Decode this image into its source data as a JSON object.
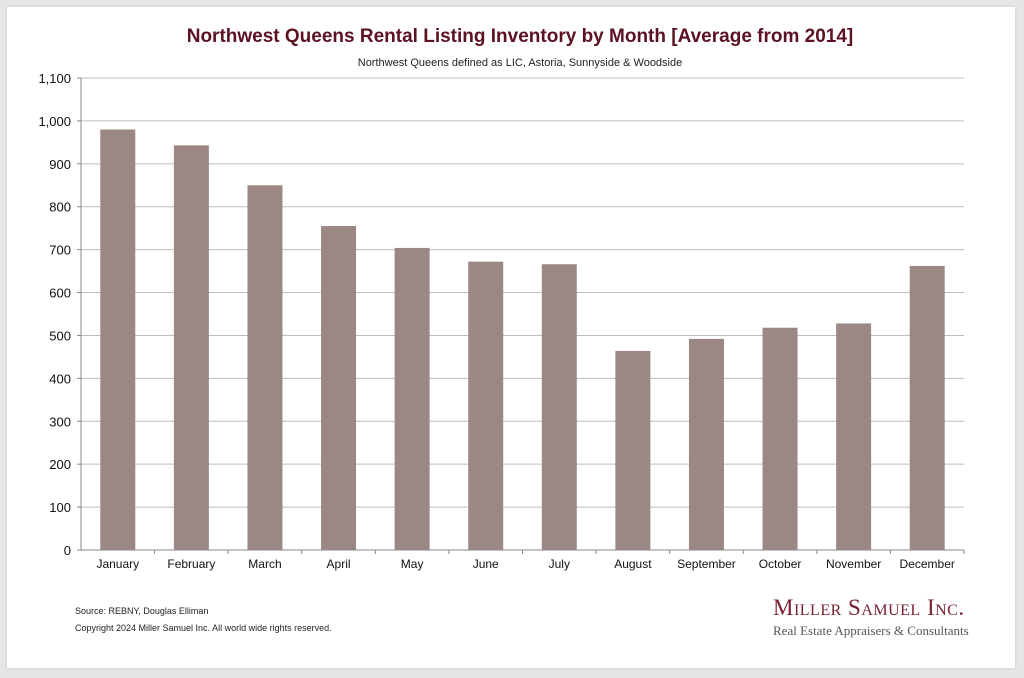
{
  "chart_data": {
    "type": "bar",
    "title": "Northwest Queens Rental Listing Inventory by Month [Average from 2014]",
    "subtitle": "Northwest Queens defined as LIC, Astoria, Sunnyside & Woodside",
    "categories": [
      "January",
      "February",
      "March",
      "April",
      "May",
      "June",
      "July",
      "August",
      "September",
      "October",
      "November",
      "December"
    ],
    "values": [
      980,
      943,
      850,
      755,
      704,
      672,
      666,
      464,
      492,
      518,
      528,
      662
    ],
    "ylim": [
      0,
      1100
    ],
    "yticks": [
      0,
      100,
      200,
      300,
      400,
      500,
      600,
      700,
      800,
      900,
      1000,
      1100
    ],
    "ytick_labels": [
      "0",
      "100",
      "200",
      "300",
      "400",
      "500",
      "600",
      "700",
      "800",
      "900",
      "1,000",
      "1,100"
    ],
    "xlabel": "",
    "ylabel": "",
    "grid": true,
    "bar_color": "#9b8784"
  },
  "footer": {
    "source": "Source: REBNY, Douglas Elliman",
    "copyright": "Copyright 2024 Miller Samuel Inc.  All world wide rights reserved."
  },
  "brand": {
    "name": "Miller Samuel Inc.",
    "tagline": "Real Estate Appraisers & Consultants",
    "color": "#7a2230"
  }
}
